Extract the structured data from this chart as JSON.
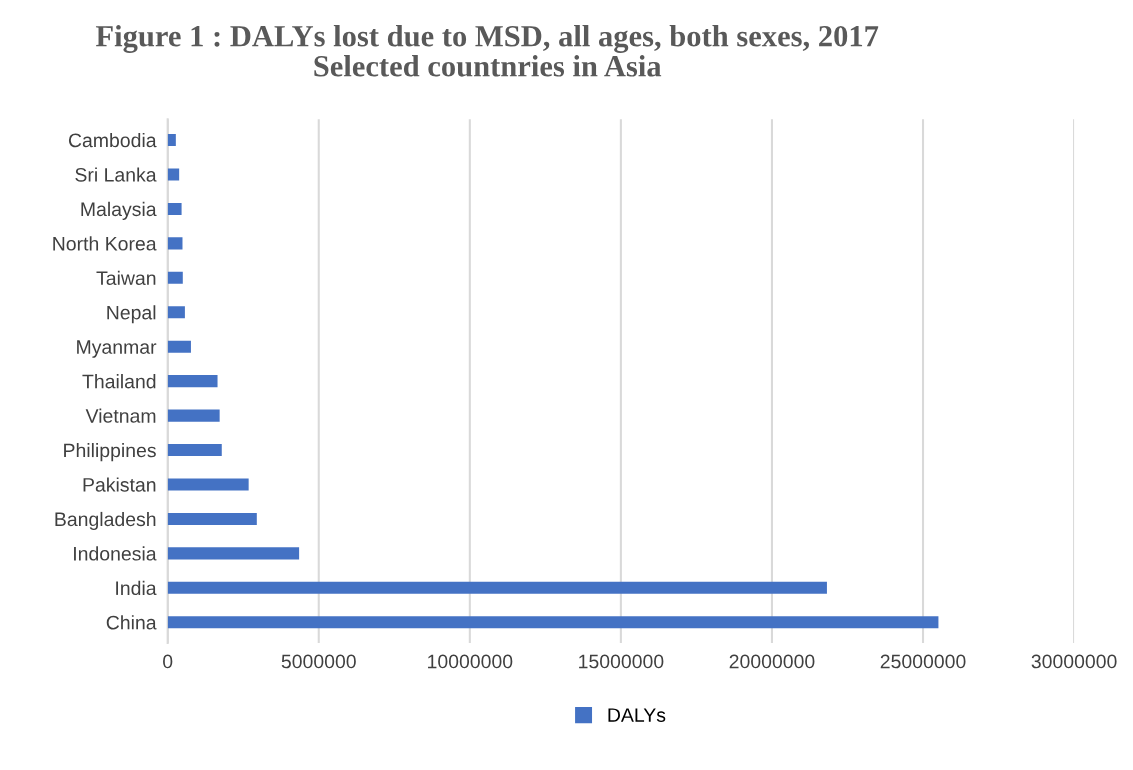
{
  "chart_data": {
    "type": "bar",
    "orientation": "horizontal",
    "title": "Figure 1 : DALYs lost due to MSD, all ages, both sexes, 2017\nSelected countnries in Asia",
    "categories": [
      "Cambodia",
      "Sri Lanka",
      "Malaysia",
      "North Korea",
      "Taiwan",
      "Nepal",
      "Myanmar",
      "Thailand",
      "Vietnam",
      "Philippines",
      "Pakistan",
      "Bangladesh",
      "Indonesia",
      "India",
      "China"
    ],
    "series": [
      {
        "name": "DALYs",
        "color": "#4472c4",
        "values": [
          270000,
          380000,
          460000,
          490000,
          500000,
          570000,
          770000,
          1650000,
          1720000,
          1790000,
          2680000,
          2950000,
          4350000,
          21820000,
          25510000
        ]
      }
    ],
    "xlim": [
      0,
      30000000
    ],
    "xticks": [
      0,
      5000000,
      10000000,
      15000000,
      20000000,
      25000000,
      30000000
    ],
    "grid": "x",
    "legend": "bottom"
  }
}
